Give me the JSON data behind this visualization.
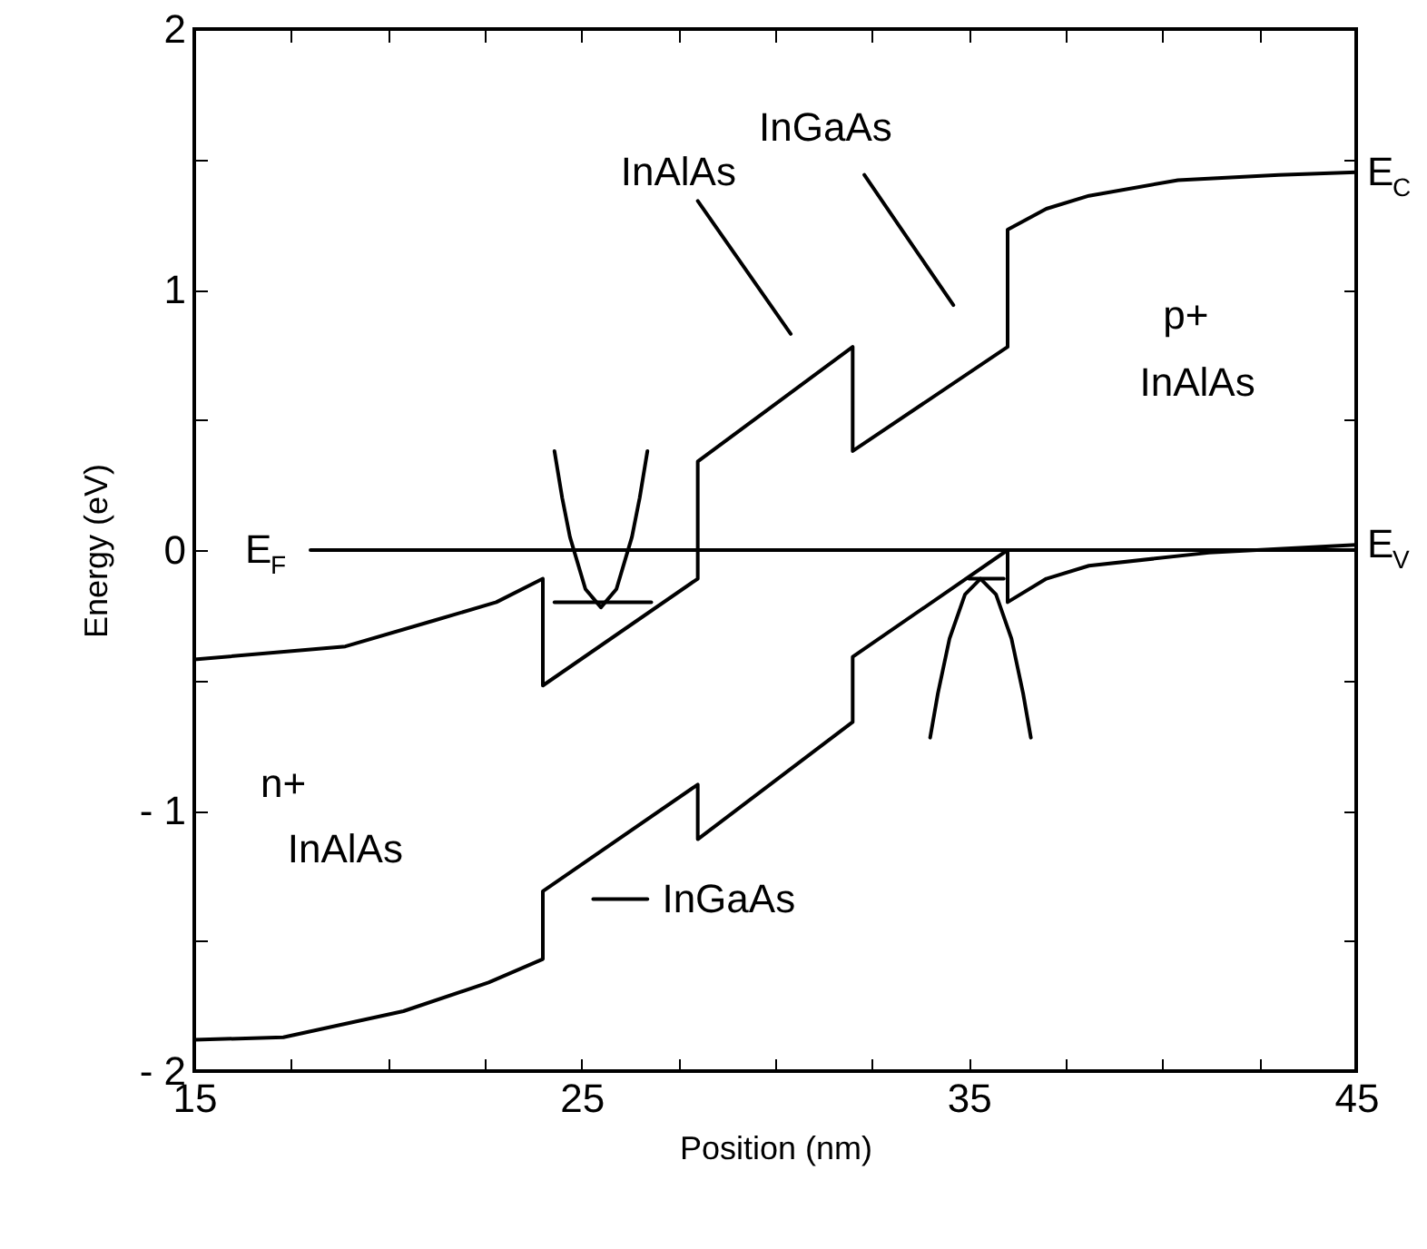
{
  "chart_data": {
    "type": "line",
    "xlabel": "Position (nm)",
    "ylabel": "Energy (eV)",
    "xlim": [
      15,
      45
    ],
    "ylim": [
      -2,
      2
    ],
    "legend": "right",
    "xticks": [
      15,
      {
        "value": 17.5,
        "label": null
      },
      {
        "value": 20,
        "label": null
      },
      {
        "value": 22.5,
        "label": null
      },
      25,
      {
        "value": 27.5,
        "label": null
      },
      {
        "value": 30,
        "label": null
      },
      {
        "value": 32.5,
        "label": null
      },
      35,
      {
        "value": 37.5,
        "label": null
      },
      {
        "value": 40,
        "label": null
      },
      {
        "value": 42.5,
        "label": null
      },
      45
    ],
    "yticks": [
      {
        "value": -2,
        "label": "- 2"
      },
      {
        "value": -1.5,
        "label": null
      },
      {
        "value": -1,
        "label": "- 1"
      },
      {
        "value": -0.5,
        "label": null
      },
      0,
      {
        "value": 0.5,
        "label": null
      },
      1,
      {
        "value": 1.5,
        "label": null
      },
      2
    ],
    "series": [
      {
        "name": "E$_{C}$",
        "color": "#000000",
        "x": [
          15,
          18.9,
          21.2,
          22.8,
          24,
          24,
          28,
          28,
          32,
          32,
          36,
          36,
          37,
          38.1,
          40.4,
          43,
          45
        ],
        "values": [
          -0.42,
          -0.37,
          -0.27,
          -0.2,
          -0.11,
          -0.52,
          -0.11,
          0.34,
          0.78,
          0.38,
          0.78,
          1.23,
          1.31,
          1.36,
          1.42,
          1.44,
          1.45
        ]
      },
      {
        "name": "E$_{V}$",
        "color": "#000000",
        "x": [
          15,
          17.3,
          20.4,
          22.6,
          24,
          24,
          28,
          28,
          32,
          32,
          36,
          36,
          37,
          38.1,
          41.2,
          45
        ],
        "values": [
          -1.88,
          -1.87,
          -1.77,
          -1.66,
          -1.57,
          -1.31,
          -0.9,
          -1.11,
          -0.66,
          -0.41,
          0,
          -0.2,
          -0.11,
          -0.06,
          -0.01,
          0.02
        ]
      },
      {
        "name": "E$_{F}$",
        "color": "#000000",
        "x": [
          18,
          45
        ],
        "values": [
          0,
          0
        ]
      },
      {
        "color": "#000000",
        "x": [
          24.3,
          24.5,
          24.7,
          25.1,
          25.5,
          25.9,
          26.3,
          26.5,
          26.7
        ],
        "values": [
          0.38,
          0.2,
          0.05,
          -0.15,
          -0.22,
          -0.15,
          0.05,
          0.2,
          0.38
        ]
      },
      {
        "color": "#000000",
        "x": [
          24.3,
          26.8
        ],
        "values": [
          -0.2,
          -0.2
        ]
      },
      {
        "color": "#000000",
        "x": [
          34,
          34.2,
          34.5,
          34.9,
          35.3,
          35.7,
          36.1,
          36.4,
          36.6
        ],
        "values": [
          -0.72,
          -0.55,
          -0.34,
          -0.17,
          -0.11,
          -0.17,
          -0.34,
          -0.55,
          -0.72
        ]
      },
      {
        "color": "#000000",
        "x": [
          35,
          35.9
        ],
        "values": [
          -0.11,
          -0.11
        ]
      },
      {
        "color": "#000000",
        "x": [
          28,
          30.4
        ],
        "values": [
          1.34,
          0.83
        ]
      },
      {
        "color": "#000000",
        "x": [
          32.3,
          34.6
        ],
        "values": [
          1.44,
          0.94
        ]
      },
      {
        "color": "#000000",
        "x": [
          25.3,
          26.7
        ],
        "values": [
          -1.34,
          -1.34
        ]
      }
    ],
    "annotations": [
      "InAlAs",
      "InGaAs",
      "p+",
      "InAlAs",
      "n+",
      "InAlAs",
      "InGaAs"
    ]
  }
}
